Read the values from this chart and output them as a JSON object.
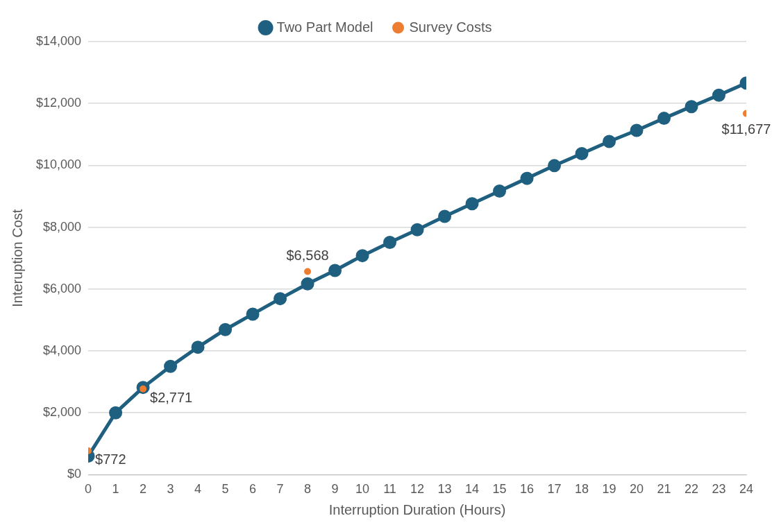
{
  "chart_data": {
    "type": "line",
    "xlabel": "Interruption Duration (Hours)",
    "ylabel": "Interuption Cost",
    "xlim": [
      0,
      24
    ],
    "xticks": [
      0,
      1,
      2,
      3,
      4,
      5,
      6,
      7,
      8,
      9,
      10,
      11,
      12,
      13,
      14,
      15,
      16,
      17,
      18,
      19,
      20,
      21,
      22,
      23,
      24
    ],
    "ylim": [
      0,
      14000
    ],
    "yticks": [
      {
        "value": 0,
        "label": "$0"
      },
      {
        "value": 2000,
        "label": "$2,000"
      },
      {
        "value": 4000,
        "label": "$4,000"
      },
      {
        "value": 6000,
        "label": "$6,000"
      },
      {
        "value": 8000,
        "label": "$8,000"
      },
      {
        "value": 10000,
        "label": "$10,000"
      },
      {
        "value": 12000,
        "label": "$12,000"
      },
      {
        "value": 14000,
        "label": "$14,000"
      }
    ],
    "grid": "y",
    "legend": "top",
    "marker": "circle",
    "line_style": "solid",
    "series": [
      {
        "name": "Two Part Model",
        "type": "line",
        "color": "#1f5f7f",
        "x": [
          0,
          1,
          2,
          3,
          4,
          5,
          6,
          7,
          8,
          9,
          10,
          11,
          12,
          13,
          14,
          15,
          16,
          17,
          18,
          19,
          20,
          21,
          22,
          23,
          24
        ],
        "values": [
          600,
          2000,
          2820,
          3500,
          4120,
          4690,
          5190,
          5690,
          6170,
          6600,
          7080,
          7510,
          7920,
          8350,
          8760,
          9170,
          9580,
          9990,
          10380,
          10770,
          11130,
          11520,
          11900,
          12270,
          12660
        ]
      },
      {
        "name": "Survey Costs",
        "type": "scatter",
        "color": "#ed7d31",
        "x": [
          0,
          2,
          8,
          24
        ],
        "values": [
          772,
          2771,
          6568,
          11677
        ],
        "value_labels": [
          "$772",
          "$2,771",
          "$6,568",
          "$11,677"
        ]
      }
    ]
  }
}
